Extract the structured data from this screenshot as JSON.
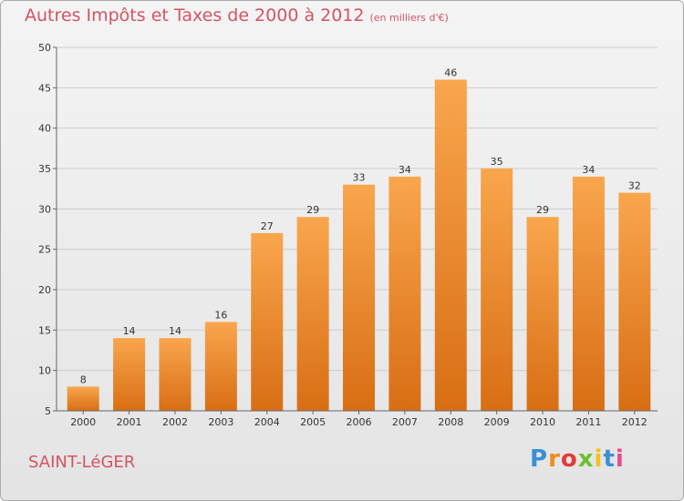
{
  "header": {
    "title": "Autres Impôts et Taxes de 2000 à 2012",
    "unit": "(en milliers d'€)"
  },
  "footer": {
    "commune": "SAINT-LéGER",
    "logo_letters": [
      "P",
      "r",
      "o",
      "x",
      "i",
      "t",
      "i"
    ],
    "logo_colors": [
      "#3b8fd6",
      "#f28a1e",
      "#e23a3a",
      "#6cbf2e",
      "#f5c116",
      "#3b8fd6",
      "#e84a8a"
    ]
  },
  "colors": {
    "title": "#d35463",
    "bar_light": "#f9a64d",
    "bar_dark": "#d86e14",
    "grid": "#cccccc",
    "axis_text": "#333333"
  },
  "chart_data": {
    "type": "bar",
    "title": "Autres Impôts et Taxes de 2000 à 2012",
    "xlabel": "",
    "ylabel": "",
    "categories": [
      "2000",
      "2001",
      "2002",
      "2003",
      "2004",
      "2005",
      "2006",
      "2007",
      "2008",
      "2009",
      "2010",
      "2011",
      "2012"
    ],
    "values": [
      8,
      14,
      14,
      16,
      27,
      29,
      33,
      34,
      46,
      35,
      29,
      34,
      32
    ],
    "ylim": [
      5,
      50
    ],
    "yticks": [
      5,
      10,
      15,
      20,
      25,
      30,
      35,
      40,
      45,
      50
    ],
    "grid": true,
    "data_labels": true
  }
}
